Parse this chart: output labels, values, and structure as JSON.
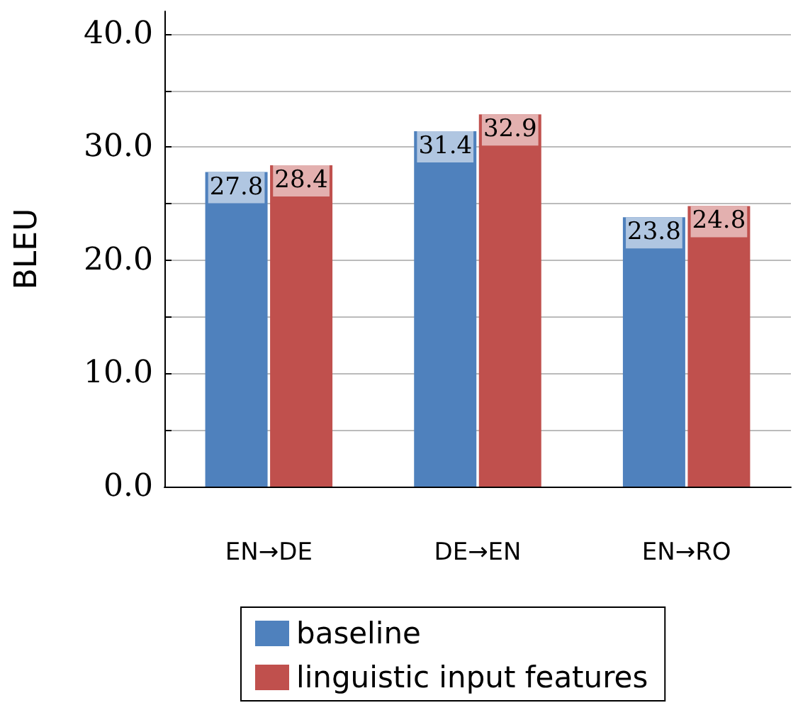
{
  "chart_data": {
    "type": "bar",
    "ylabel": "BLEU",
    "categories": [
      "EN→DE",
      "DE→EN",
      "EN→RO"
    ],
    "series": [
      {
        "name": "baseline",
        "color": "#4f81bd",
        "values": [
          27.8,
          31.4,
          23.8
        ]
      },
      {
        "name": "linguistic input features",
        "color": "#c0504d",
        "values": [
          28.4,
          32.9,
          24.8
        ]
      }
    ],
    "ylim": [
      0,
      42
    ],
    "yticks": [
      {
        "value": 0,
        "label": "0.0"
      },
      {
        "value": 5,
        "label": null
      },
      {
        "value": 10,
        "label": "10.0"
      },
      {
        "value": 15,
        "label": null
      },
      {
        "value": 20,
        "label": "20.0"
      },
      {
        "value": 25,
        "label": null
      },
      {
        "value": 30,
        "label": "30.0"
      },
      {
        "value": 35,
        "label": null
      },
      {
        "value": 40,
        "label": "40.0"
      }
    ],
    "grid": "y",
    "legend": "bottom",
    "data_labels": true
  }
}
